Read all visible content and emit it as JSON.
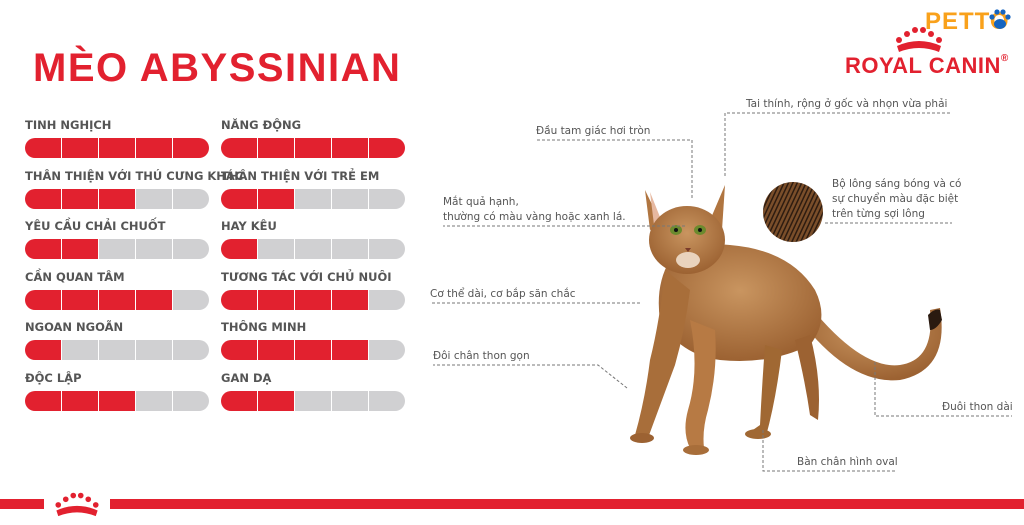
{
  "title": "MÈO ABYSSINIAN",
  "brand": {
    "name": "ROYAL CANIN",
    "registered": "®",
    "watermark": "PETTO"
  },
  "traits_left": [
    {
      "label": "TINH NGHỊCH",
      "level": 5,
      "max": 5
    },
    {
      "label": "THÂN THIỆN VỚI THÚ CƯNG KHÁC",
      "level": 3,
      "max": 5
    },
    {
      "label": "YÊU CẦU CHẢI CHUỐT",
      "level": 2,
      "max": 5
    },
    {
      "label": "CẦN QUAN TÂM",
      "level": 4,
      "max": 5
    },
    {
      "label": "NGOAN NGOÃN",
      "level": 1,
      "max": 5
    },
    {
      "label": "ĐỘC LẬP",
      "level": 3,
      "max": 5
    }
  ],
  "traits_right": [
    {
      "label": "NĂNG ĐỘNG",
      "level": 5,
      "max": 5
    },
    {
      "label": "THÂN THIỆN VỚI TRẺ EM",
      "level": 2,
      "max": 5
    },
    {
      "label": "HAY KÊU",
      "level": 1,
      "max": 5
    },
    {
      "label": "TƯƠNG TÁC VỚI CHỦ NUÔI",
      "level": 4,
      "max": 5
    },
    {
      "label": "THÔNG MINH",
      "level": 4,
      "max": 5
    },
    {
      "label": "GAN DẠ",
      "level": 2,
      "max": 5
    }
  ],
  "annotations": {
    "ears": "Tai thính, rộng ở gốc và nhọn vừa phải",
    "head": "Đầu tam giác hơi tròn",
    "eyes_line1": "Mắt quả hạnh,",
    "eyes_line2": "thường có màu vàng hoặc xanh lá.",
    "coat_line1": "Bộ lông sáng bóng và có",
    "coat_line2": "sự chuyển màu đặc biệt",
    "coat_line3": "trên từng sợi lông",
    "body": "Cơ thể dài, cơ bắp săn chắc",
    "legs": "Đôi chân thon gọn",
    "tail": "Đuôi thon dài",
    "paws": "Bàn chân hình oval"
  },
  "colors": {
    "accent": "#e2212f",
    "bar_empty": "#d0d0d2",
    "cat_coat": "#b77a44",
    "petto": "#f9a11b"
  }
}
